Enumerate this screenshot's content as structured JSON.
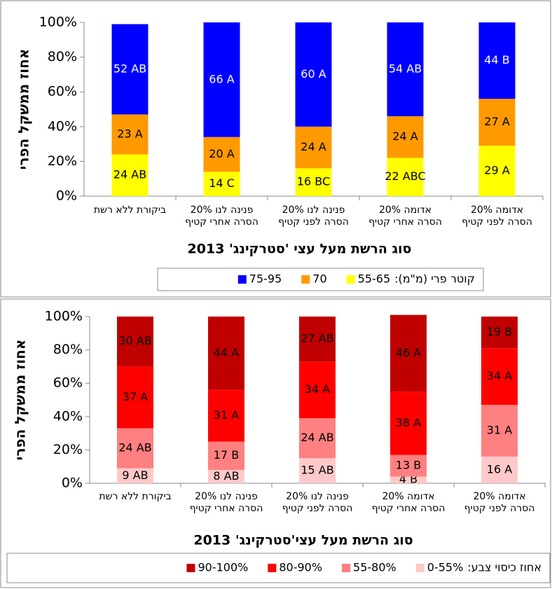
{
  "chart_data": [
    {
      "type": "stacked_bar",
      "title": null,
      "y_label": "אחוז ממשקל הפרי",
      "x_label": "סוג הרשת מעל עצי 'סטרקינג' 2013",
      "legend_title": "קוטר פרי (מ\"מ):",
      "categories": [
        "ביקורת ללא רשת",
        "פנינה לנו 20%\nהסרה אחרי קטיף",
        "פנינה לנו 20%\nהסרה לפני קטיף",
        "אדומה 20%\nהסרה אחרי קטיף",
        "אדומה 20%\nהסרה לפני קטיף"
      ],
      "ylim": [
        0,
        100
      ],
      "yticks": [
        {
          "value": 0,
          "label": "0%"
        },
        {
          "value": 20,
          "label": "20%"
        },
        {
          "value": 40,
          "label": "40%"
        },
        {
          "value": 60,
          "label": "60%"
        },
        {
          "value": 80,
          "label": "80%"
        },
        {
          "value": 100,
          "label": "100%"
        }
      ],
      "series": [
        {
          "name": "55-65",
          "color": "#ffff00",
          "label_color": "#000000",
          "values": [
            24,
            14,
            16,
            22,
            29
          ],
          "value_labels": [
            "24 AB",
            "14 C",
            "16 BC",
            "22 ABC",
            "29 A"
          ]
        },
        {
          "name": "70",
          "color": "#ff9900",
          "label_color": "#000000",
          "values": [
            23,
            20,
            24,
            24,
            27
          ],
          "value_labels": [
            "23 A",
            "20 A",
            "24 A",
            "24 A",
            "27 A"
          ]
        },
        {
          "name": "75-95",
          "color": "#0000ff",
          "label_color": "#ffffff",
          "values": [
            52,
            66,
            60,
            54,
            44
          ],
          "value_labels": [
            "52 AB",
            "66 A",
            "60 A",
            "54 AB",
            "44 B"
          ]
        }
      ]
    },
    {
      "type": "stacked_bar",
      "title": null,
      "y_label": "אחוז ממשקל הפרי",
      "x_label": "סוג הרשת מעל עצי'סטרקינג' 2013",
      "legend_title": "אחוז כיסוי צבע:",
      "categories": [
        "ביקורת ללא רשת",
        "פנינה לנו 20%\nהסרה אחרי קטיף",
        "פנינה לנו 20%\nהסרה לפני קטיף",
        "אדומה 20%\nהסרה אחרי קטיף",
        "אדומה 20%\nהסרה לפני קטיף"
      ],
      "ylim": [
        0,
        100
      ],
      "yticks": [
        {
          "value": 0,
          "label": "0%"
        },
        {
          "value": 20,
          "label": "20%"
        },
        {
          "value": 40,
          "label": "40%"
        },
        {
          "value": 60,
          "label": "60%"
        },
        {
          "value": 80,
          "label": "80%"
        },
        {
          "value": 100,
          "label": "100%"
        }
      ],
      "series": [
        {
          "name": "0-55%",
          "color": "#ffc9c9",
          "label_color": "#000000",
          "values": [
            9,
            8,
            15,
            4,
            16
          ],
          "value_labels": [
            "9 AB",
            "8 AB",
            "15 AB",
            "4 B",
            "16 A"
          ]
        },
        {
          "name": "55-80%",
          "color": "#ff8080",
          "label_color": "#000000",
          "values": [
            24,
            17,
            24,
            13,
            31
          ],
          "value_labels": [
            "24 AB",
            "17 B",
            "24 AB",
            "13 B",
            "31 A"
          ]
        },
        {
          "name": "80-90%",
          "color": "#ff0000",
          "label_color": "#000000",
          "values": [
            37,
            31,
            34,
            38,
            34
          ],
          "value_labels": [
            "37 A",
            "31 A",
            "34 A",
            "38 A",
            "34 A"
          ]
        },
        {
          "name": "90-100%",
          "color": "#c00000",
          "label_color": "#000000",
          "values": [
            30,
            44,
            27,
            46,
            19
          ],
          "value_labels": [
            "30 AB",
            "44 A",
            "27 AB",
            "46 A",
            "19 B"
          ]
        }
      ]
    }
  ]
}
